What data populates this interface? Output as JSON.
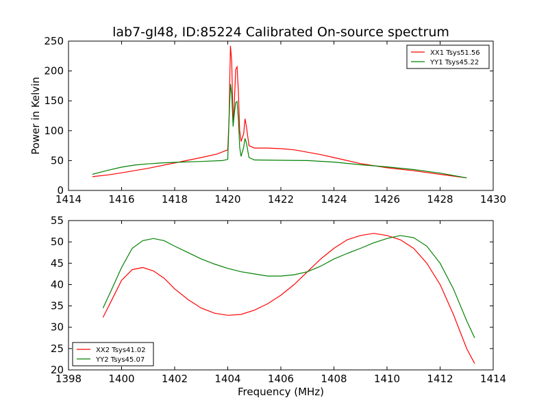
{
  "title": "lab7-gl48, ID:85224 Calibrated On-source spectrum",
  "chart_data": [
    {
      "type": "line",
      "title": "lab7-gl48, ID:85224 Calibrated On-source spectrum",
      "xlabel": "",
      "ylabel": "Power in Kelvin",
      "xlim": [
        1414,
        1430
      ],
      "ylim": [
        0,
        250
      ],
      "xticks": [
        "1414",
        "1416",
        "1418",
        "1420",
        "1422",
        "1424",
        "1426",
        "1428",
        "1430"
      ],
      "yticks": [
        "0",
        "50",
        "100",
        "150",
        "200",
        "250"
      ],
      "grid": false,
      "legend_position": "top-right",
      "series": [
        {
          "name": "XX1 Tsys51.56",
          "color": "#ff0000",
          "points": [
            [
              1414.9,
              23
            ],
            [
              1415.5,
              26
            ],
            [
              1416,
              29.5
            ],
            [
              1417,
              37
            ],
            [
              1418,
              46
            ],
            [
              1419,
              55
            ],
            [
              1419.6,
              61
            ],
            [
              1420.0,
              68
            ],
            [
              1420.05,
              120
            ],
            [
              1420.1,
              242
            ],
            [
              1420.15,
              215
            ],
            [
              1420.2,
              110
            ],
            [
              1420.25,
              150
            ],
            [
              1420.3,
              203
            ],
            [
              1420.35,
              207
            ],
            [
              1420.4,
              165
            ],
            [
              1420.45,
              100
            ],
            [
              1420.5,
              82
            ],
            [
              1420.6,
              95
            ],
            [
              1420.65,
              120
            ],
            [
              1420.7,
              108
            ],
            [
              1420.8,
              75
            ],
            [
              1421.0,
              71
            ],
            [
              1421.5,
              71
            ],
            [
              1422,
              70
            ],
            [
              1422.5,
              68
            ],
            [
              1423,
              64
            ],
            [
              1423.5,
              60
            ],
            [
              1424,
              55
            ],
            [
              1425,
              45
            ],
            [
              1426,
              38
            ],
            [
              1427,
              33
            ],
            [
              1428,
              27
            ],
            [
              1429,
              21
            ]
          ]
        },
        {
          "name": "YY1 Tsys45.22",
          "color": "#008000",
          "points": [
            [
              1414.9,
              27
            ],
            [
              1415.5,
              34
            ],
            [
              1416,
              39
            ],
            [
              1416.5,
              42.5
            ],
            [
              1417,
              44.5
            ],
            [
              1417.5,
              46
            ],
            [
              1418,
              47
            ],
            [
              1419,
              48.5
            ],
            [
              1419.8,
              50
            ],
            [
              1420.0,
              52
            ],
            [
              1420.05,
              120
            ],
            [
              1420.1,
              178
            ],
            [
              1420.15,
              160
            ],
            [
              1420.2,
              107
            ],
            [
              1420.25,
              130
            ],
            [
              1420.3,
              147
            ],
            [
              1420.35,
              149
            ],
            [
              1420.4,
              120
            ],
            [
              1420.45,
              72
            ],
            [
              1420.5,
              57
            ],
            [
              1420.6,
              72
            ],
            [
              1420.65,
              87
            ],
            [
              1420.7,
              80
            ],
            [
              1420.8,
              55
            ],
            [
              1421,
              51
            ],
            [
              1422,
              50.5
            ],
            [
              1423,
              50
            ],
            [
              1424,
              47.5
            ],
            [
              1425,
              43
            ],
            [
              1426,
              39.5
            ],
            [
              1427,
              35
            ],
            [
              1428,
              29
            ],
            [
              1429,
              21
            ]
          ]
        }
      ]
    },
    {
      "type": "line",
      "title": "",
      "xlabel": "Frequency (MHz)",
      "ylabel": "",
      "xlim": [
        1398,
        1414
      ],
      "ylim": [
        20,
        55
      ],
      "xticks": [
        "1398",
        "1400",
        "1402",
        "1404",
        "1406",
        "1408",
        "1410",
        "1412",
        "1414"
      ],
      "yticks": [
        "20",
        "25",
        "30",
        "35",
        "40",
        "45",
        "50",
        "55"
      ],
      "grid": false,
      "legend_position": "bottom-left",
      "series": [
        {
          "name": "XX2 Tsys41.02",
          "color": "#ff0000",
          "points": [
            [
              1399.3,
              32.3
            ],
            [
              1399.6,
              36
            ],
            [
              1400,
              41
            ],
            [
              1400.4,
              43.5
            ],
            [
              1400.8,
              44
            ],
            [
              1401.2,
              43.2
            ],
            [
              1401.6,
              41.5
            ],
            [
              1402,
              39
            ],
            [
              1402.5,
              36.5
            ],
            [
              1403,
              34.5
            ],
            [
              1403.5,
              33.3
            ],
            [
              1404,
              32.8
            ],
            [
              1404.5,
              33
            ],
            [
              1405,
              34
            ],
            [
              1405.5,
              35.5
            ],
            [
              1406,
              37.5
            ],
            [
              1406.5,
              40
            ],
            [
              1407,
              43
            ],
            [
              1407.5,
              46
            ],
            [
              1408,
              48.5
            ],
            [
              1408.5,
              50.5
            ],
            [
              1409,
              51.5
            ],
            [
              1409.5,
              52
            ],
            [
              1410,
              51.5
            ],
            [
              1410.5,
              50.5
            ],
            [
              1411,
              48.5
            ],
            [
              1411.5,
              45
            ],
            [
              1412,
              40
            ],
            [
              1412.5,
              33
            ],
            [
              1413,
              25
            ],
            [
              1413.3,
              21.5
            ]
          ]
        },
        {
          "name": "YY2 Tsys45.07",
          "color": "#008000",
          "points": [
            [
              1399.3,
              34.5
            ],
            [
              1399.6,
              38.5
            ],
            [
              1400,
              44
            ],
            [
              1400.4,
              48.5
            ],
            [
              1400.8,
              50.3
            ],
            [
              1401.2,
              50.8
            ],
            [
              1401.6,
              50.3
            ],
            [
              1402,
              49
            ],
            [
              1402.5,
              47.5
            ],
            [
              1403,
              46
            ],
            [
              1403.5,
              44.8
            ],
            [
              1404,
              43.8
            ],
            [
              1404.5,
              43
            ],
            [
              1405,
              42.5
            ],
            [
              1405.5,
              42
            ],
            [
              1406,
              42
            ],
            [
              1406.5,
              42.3
            ],
            [
              1407,
              43
            ],
            [
              1407.5,
              44.3
            ],
            [
              1408,
              46
            ],
            [
              1408.5,
              47.3
            ],
            [
              1409,
              48.5
            ],
            [
              1409.5,
              49.8
            ],
            [
              1410,
              50.8
            ],
            [
              1410.5,
              51.5
            ],
            [
              1411,
              51
            ],
            [
              1411.5,
              49
            ],
            [
              1412,
              45
            ],
            [
              1412.5,
              39
            ],
            [
              1413,
              31.5
            ],
            [
              1413.3,
              27.5
            ]
          ]
        }
      ]
    }
  ]
}
